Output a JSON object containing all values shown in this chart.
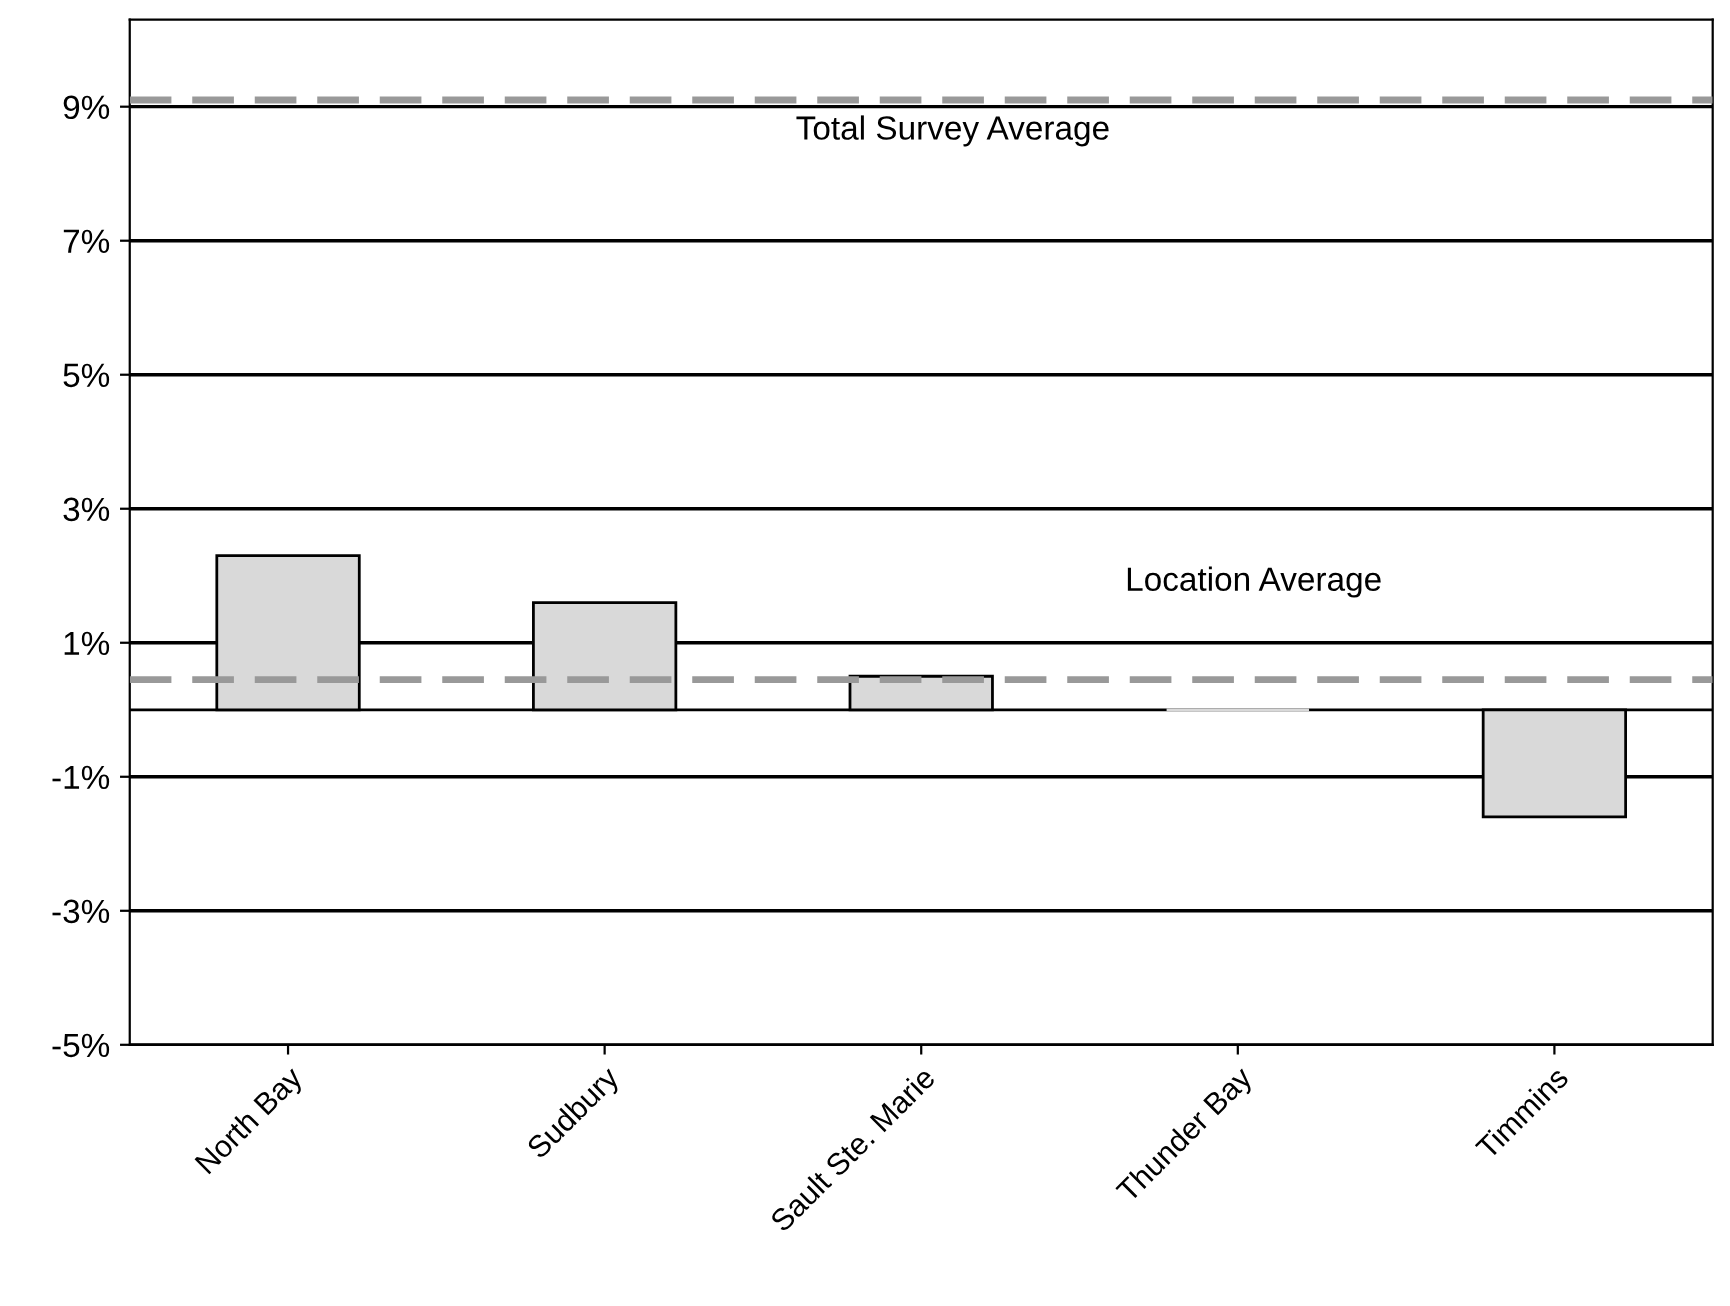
{
  "chart_data": {
    "type": "bar",
    "categories": [
      "North Bay",
      "Sudbury",
      "Sault Ste. Marie",
      "Thunder Bay",
      "Timmins"
    ],
    "values": [
      2.3,
      1.6,
      0.5,
      0.0,
      -1.6
    ],
    "color": "#d9d9d9",
    "ylim": [
      -5,
      10.3
    ],
    "yticks": [
      {
        "value": -5,
        "label": "-5%"
      },
      {
        "value": -3,
        "label": "-3%"
      },
      {
        "value": -1,
        "label": "-1%"
      },
      {
        "value": 1,
        "label": "1%"
      },
      {
        "value": 3,
        "label": "3%"
      },
      {
        "value": 5,
        "label": "5%"
      },
      {
        "value": 7,
        "label": "7%"
      },
      {
        "value": 9,
        "label": "9%"
      }
    ],
    "grid": "y",
    "ref_lines": [
      {
        "axis": "y",
        "value": 9.1,
        "label": "Total Survey Average",
        "color": "#999999",
        "line_style": "dashed"
      },
      {
        "axis": "y",
        "value": 0.45,
        "label": "Location Average",
        "color": "#999999",
        "line_style": "dashed"
      }
    ]
  }
}
